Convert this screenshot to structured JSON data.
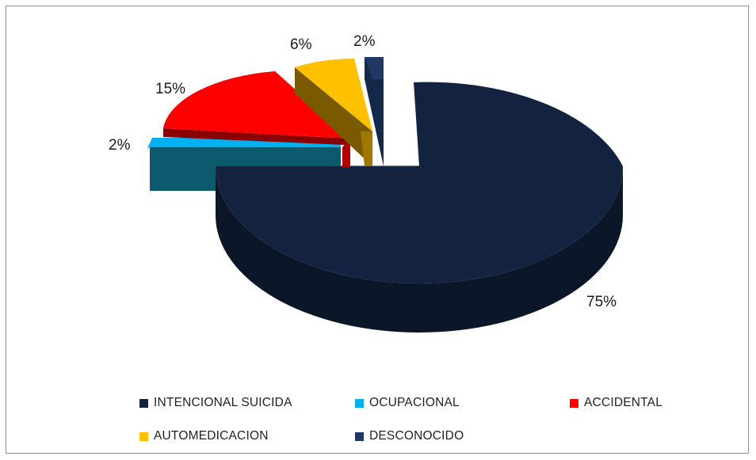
{
  "chart_data": {
    "type": "pie",
    "title": "",
    "values": [
      75,
      2,
      15,
      6,
      2
    ],
    "labels": [
      "75%",
      "2%",
      "15%",
      "6%",
      "2%"
    ],
    "legend": [
      "INTENCIONAL SUICIDA",
      "OCUPACIONAL",
      "ACCIDENTAL",
      "AUTOMEDICACION",
      "DESCONOCIDO"
    ],
    "colors": [
      "#13233f",
      "#00b0f0",
      "#ff0000",
      "#ffc000",
      "#1f3864"
    ],
    "style": "3d-exploded",
    "legend_position": "bottom"
  }
}
